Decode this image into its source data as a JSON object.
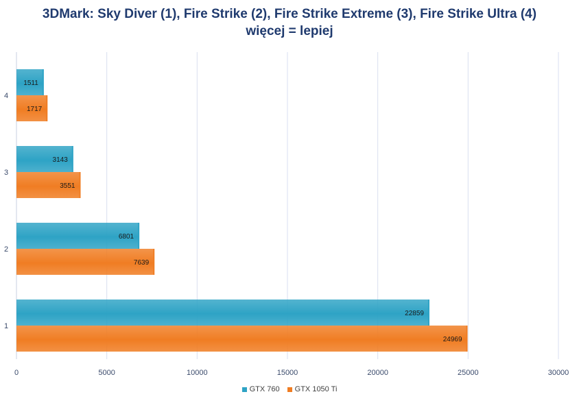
{
  "chart_data": {
    "type": "bar",
    "orientation": "horizontal",
    "title": "3DMark: Sky Diver (1), Fire Strike (2), Fire Strike Extreme (3), Fire Strike Ultra (4)",
    "subtitle": "więcej = lepiej",
    "categories": [
      "1",
      "2",
      "3",
      "4"
    ],
    "series": [
      {
        "name": "GTX 760",
        "values": [
          22859,
          6801,
          3143,
          1511
        ],
        "color": "#2ea3c5"
      },
      {
        "name": "GTX 1050 Ti",
        "values": [
          24969,
          7639,
          3551,
          1717
        ],
        "color": "#f07d23"
      }
    ],
    "xlim": [
      0,
      30000
    ],
    "xticks": [
      "0",
      "5000",
      "10000",
      "15000",
      "20000",
      "25000",
      "30000"
    ],
    "grid": true,
    "data_labels": true,
    "legend_position": "bottom"
  }
}
